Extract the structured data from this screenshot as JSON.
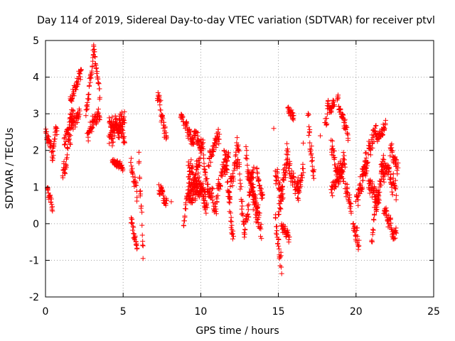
{
  "chart_data": {
    "type": "scatter",
    "title": "Day 114 of 2019, Sidereal Day-to-day VTEC variation (SDTVAR) for receiver ptvl",
    "xlabel": "GPS time / hours",
    "ylabel": "SDTVAR / TECUs",
    "xlim": [
      0,
      25
    ],
    "ylim": [
      -2,
      5
    ],
    "xticks": [
      0,
      5,
      10,
      15,
      20,
      25
    ],
    "yticks": [
      -2,
      -1,
      0,
      1,
      2,
      3,
      4,
      5
    ],
    "grid": true,
    "marker": "plus",
    "color": "#ff0000",
    "series": [
      {
        "name": "SDTVAR",
        "segments": [
          {
            "t0": 0.0,
            "t1": 0.5,
            "v0": 2.4,
            "v1": 1.9,
            "noise": 0.25
          },
          {
            "t0": 0.1,
            "t1": 0.45,
            "v0": 1.0,
            "v1": 0.5,
            "noise": 0.2
          },
          {
            "t0": 0.45,
            "t1": 0.75,
            "v0": 2.0,
            "v1": 2.6,
            "noise": 0.2
          },
          {
            "t0": 1.1,
            "t1": 1.6,
            "v0": 1.3,
            "v1": 2.5,
            "noise": 0.3
          },
          {
            "t0": 1.2,
            "t1": 1.8,
            "v0": 2.2,
            "v1": 3.1,
            "noise": 0.3
          },
          {
            "t0": 1.6,
            "t1": 2.2,
            "v0": 2.5,
            "v1": 3.2,
            "noise": 0.3
          },
          {
            "t0": 1.6,
            "t1": 2.3,
            "v0": 3.4,
            "v1": 4.2,
            "noise": 0.25
          },
          {
            "t0": 2.6,
            "t1": 3.1,
            "v0": 2.9,
            "v1": 4.7,
            "noise": 0.25
          },
          {
            "t0": 3.1,
            "t1": 3.5,
            "v0": 4.9,
            "v1": 3.4,
            "noise": 0.2
          },
          {
            "t0": 2.7,
            "t1": 3.5,
            "v0": 2.5,
            "v1": 3.0,
            "noise": 0.3
          },
          {
            "t0": 4.1,
            "t1": 5.1,
            "v0": 2.3,
            "v1": 3.1,
            "noise": 0.35
          },
          {
            "t0": 4.1,
            "t1": 5.1,
            "v0": 2.8,
            "v1": 2.4,
            "noise": 0.3
          },
          {
            "t0": 4.3,
            "t1": 5.0,
            "v0": 1.7,
            "v1": 1.5,
            "noise": 0.15
          },
          {
            "t0": 5.5,
            "t1": 5.9,
            "v0": 1.8,
            "v1": 0.9,
            "noise": 0.3
          },
          {
            "t0": 5.5,
            "t1": 5.9,
            "v0": 0.1,
            "v1": -0.7,
            "noise": 0.25
          },
          {
            "t0": 6.0,
            "t1": 6.3,
            "v0": 1.8,
            "v1": -0.8,
            "noise": 0.4
          },
          {
            "t0": 7.2,
            "t1": 7.8,
            "v0": 3.5,
            "v1": 2.3,
            "noise": 0.35
          },
          {
            "t0": 7.3,
            "t1": 7.8,
            "v0": 1.0,
            "v1": 0.5,
            "noise": 0.2
          },
          {
            "t0": 8.7,
            "t1": 8.9,
            "v0": 2.9,
            "v1": 2.7,
            "noise": 0.15
          },
          {
            "t0": 9.0,
            "t1": 10.2,
            "v0": 2.6,
            "v1": 2.0,
            "noise": 0.3
          },
          {
            "t0": 8.9,
            "t1": 10.0,
            "v0": 0.1,
            "v1": 1.8,
            "noise": 0.35
          },
          {
            "t0": 9.2,
            "t1": 10.4,
            "v0": 1.7,
            "v1": 0.4,
            "noise": 0.3
          },
          {
            "t0": 9.2,
            "t1": 10.3,
            "v0": 1.1,
            "v1": 0.9,
            "noise": 0.35
          },
          {
            "t0": 10.2,
            "t1": 11.0,
            "v0": 1.5,
            "v1": 0.3,
            "noise": 0.3
          },
          {
            "t0": 10.5,
            "t1": 11.2,
            "v0": 1.7,
            "v1": 2.4,
            "noise": 0.3
          },
          {
            "t0": 11.0,
            "t1": 11.8,
            "v0": 0.8,
            "v1": 1.9,
            "noise": 0.35
          },
          {
            "t0": 11.5,
            "t1": 12.1,
            "v0": 2.0,
            "v1": -0.4,
            "noise": 0.4
          },
          {
            "t0": 11.8,
            "t1": 12.4,
            "v0": 0.8,
            "v1": 2.0,
            "noise": 0.35
          },
          {
            "t0": 12.3,
            "t1": 12.8,
            "v0": 2.5,
            "v1": -0.2,
            "noise": 0.5
          },
          {
            "t0": 12.8,
            "t1": 13.4,
            "v0": -0.4,
            "v1": 1.5,
            "noise": 0.35
          },
          {
            "t0": 12.9,
            "t1": 13.7,
            "v0": 1.9,
            "v1": 0.2,
            "noise": 0.35
          },
          {
            "t0": 13.2,
            "t1": 13.9,
            "v0": 1.0,
            "v1": -0.3,
            "noise": 0.4
          },
          {
            "t0": 13.6,
            "t1": 14.0,
            "v0": 1.5,
            "v1": 0.8,
            "noise": 0.3
          },
          {
            "t0": 14.8,
            "t1": 15.2,
            "v0": 0.3,
            "v1": -1.2,
            "noise": 0.35
          },
          {
            "t0": 14.8,
            "t1": 15.3,
            "v0": 1.6,
            "v1": 0.6,
            "noise": 0.35
          },
          {
            "t0": 15.0,
            "t1": 15.6,
            "v0": 0.2,
            "v1": 2.1,
            "noise": 0.4
          },
          {
            "t0": 15.2,
            "t1": 15.7,
            "v0": -0.1,
            "v1": -0.4,
            "noise": 0.2
          },
          {
            "t0": 15.5,
            "t1": 16.3,
            "v0": 1.8,
            "v1": 0.6,
            "noise": 0.35
          },
          {
            "t0": 15.6,
            "t1": 16.0,
            "v0": 3.2,
            "v1": 2.8,
            "noise": 0.2
          },
          {
            "t0": 16.2,
            "t1": 16.6,
            "v0": 1.0,
            "v1": 1.4,
            "noise": 0.3
          },
          {
            "t0": 16.9,
            "t1": 17.3,
            "v0": 2.9,
            "v1": 1.3,
            "noise": 0.35
          },
          {
            "t0": 18.0,
            "t1": 18.6,
            "v0": 2.9,
            "v1": 3.3,
            "noise": 0.25
          },
          {
            "t0": 18.4,
            "t1": 19.2,
            "v0": 2.2,
            "v1": 1.0,
            "noise": 0.35
          },
          {
            "t0": 18.4,
            "t1": 19.3,
            "v0": 0.9,
            "v1": 1.8,
            "noise": 0.35
          },
          {
            "t0": 18.8,
            "t1": 19.5,
            "v0": 3.4,
            "v1": 2.3,
            "noise": 0.25
          },
          {
            "t0": 19.3,
            "t1": 19.7,
            "v0": 1.1,
            "v1": 0.4,
            "noise": 0.3
          },
          {
            "t0": 19.8,
            "t1": 20.2,
            "v0": -0.1,
            "v1": -0.5,
            "noise": 0.25
          },
          {
            "t0": 20.0,
            "t1": 20.7,
            "v0": 0.5,
            "v1": 1.8,
            "noise": 0.4
          },
          {
            "t0": 20.4,
            "t1": 21.3,
            "v0": 1.5,
            "v1": 2.6,
            "noise": 0.35
          },
          {
            "t0": 20.8,
            "t1": 21.5,
            "v0": 1.0,
            "v1": 0.7,
            "noise": 0.35
          },
          {
            "t0": 21.0,
            "t1": 21.8,
            "v0": -0.3,
            "v1": 1.8,
            "noise": 0.35
          },
          {
            "t0": 21.3,
            "t1": 21.9,
            "v0": 2.3,
            "v1": 2.7,
            "noise": 0.25
          },
          {
            "t0": 21.8,
            "t1": 22.6,
            "v0": 0.2,
            "v1": -0.3,
            "noise": 0.3
          },
          {
            "t0": 21.6,
            "t1": 22.6,
            "v0": 1.5,
            "v1": 1.0,
            "noise": 0.35
          },
          {
            "t0": 22.2,
            "t1": 22.7,
            "v0": 2.0,
            "v1": 1.6,
            "noise": 0.3
          }
        ],
        "isolated_points": [
          {
            "x": 14.7,
            "y": 2.6
          },
          {
            "x": 16.6,
            "y": 2.2
          },
          {
            "x": 17.7,
            "y": 2.4
          },
          {
            "x": 16.6,
            "y": 1.5
          },
          {
            "x": 21.3,
            "y": 0.6
          },
          {
            "x": 8.1,
            "y": 0.6
          }
        ],
        "sample_interval_hours": 0.0167
      }
    ]
  }
}
